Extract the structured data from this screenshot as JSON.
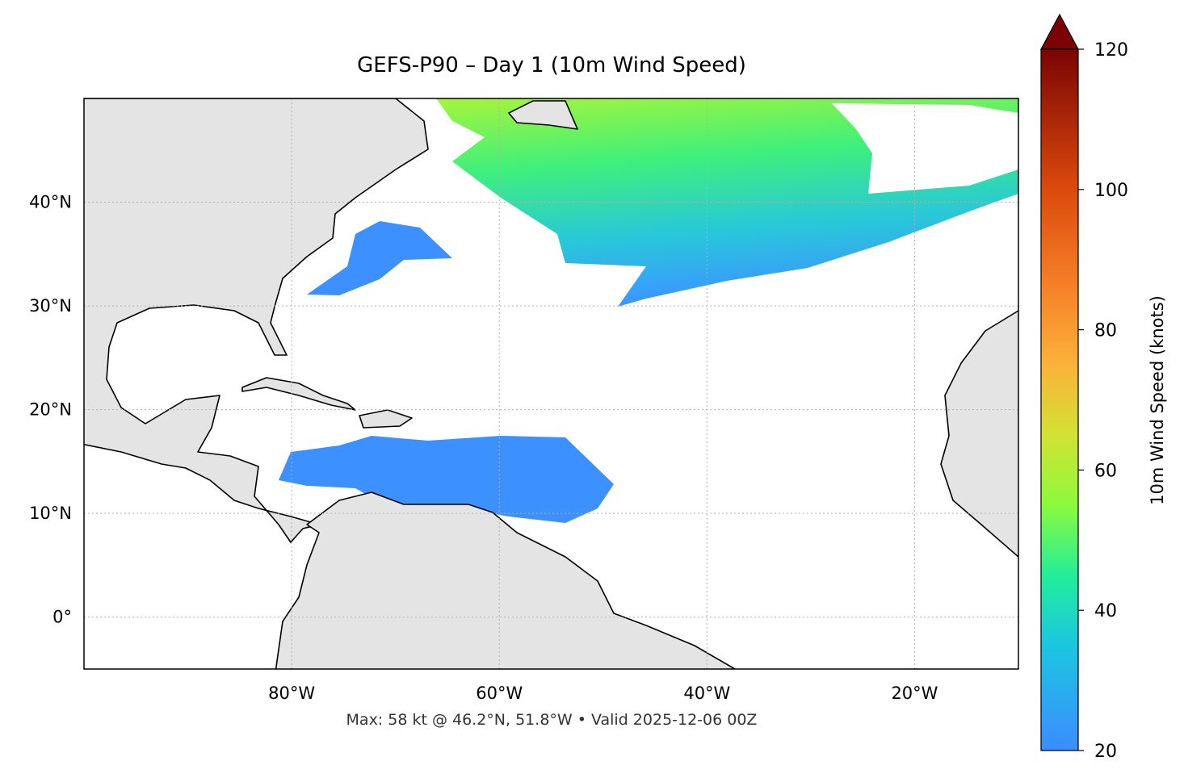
{
  "map": {
    "title": "GEFS-P90 – Day 1 (10m Wind Speed)",
    "xlim": [
      -100,
      -10
    ],
    "ylim": [
      -5,
      50
    ],
    "lon_ticks": [
      {
        "value": -80,
        "label": "80°W"
      },
      {
        "value": -60,
        "label": "60°W"
      },
      {
        "value": -40,
        "label": "40°W"
      },
      {
        "value": -20,
        "label": "20°W"
      }
    ],
    "lat_ticks": [
      {
        "value": 0,
        "label": "0°"
      },
      {
        "value": 10,
        "label": "10°N"
      },
      {
        "value": 20,
        "label": "20°N"
      },
      {
        "value": 30,
        "label": "30°N"
      },
      {
        "value": 40,
        "label": "40°N"
      }
    ],
    "footer": "Max: 58 kt @ 46.2°N, 51.8°W • Valid 2025-12-06 00Z",
    "colorbar": {
      "label": "10m Wind Speed (knots)",
      "lim": [
        20,
        120
      ],
      "ticks": [
        20,
        40,
        60,
        80,
        100,
        120
      ]
    }
  }
}
